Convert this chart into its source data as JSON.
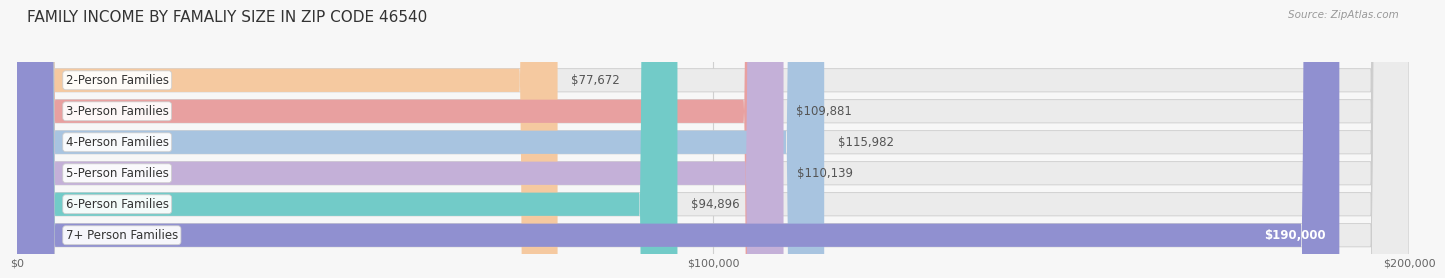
{
  "title": "FAMILY INCOME BY FAMALIY SIZE IN ZIP CODE 46540",
  "source": "Source: ZipAtlas.com",
  "categories": [
    "2-Person Families",
    "3-Person Families",
    "4-Person Families",
    "5-Person Families",
    "6-Person Families",
    "7+ Person Families"
  ],
  "values": [
    77672,
    109881,
    115982,
    110139,
    94896,
    190000
  ],
  "bar_colors": [
    "#f5c9a0",
    "#e8a0a0",
    "#a8c4e0",
    "#c4b0d8",
    "#72cbc8",
    "#9090d0"
  ],
  "label_colors": [
    "#555555",
    "#555555",
    "#555555",
    "#555555",
    "#555555",
    "#ffffff"
  ],
  "xlim": [
    0,
    200000
  ],
  "xtick_values": [
    0,
    100000,
    200000
  ],
  "xtick_labels": [
    "$0",
    "$100,000",
    "$200,000"
  ],
  "value_labels": [
    "$77,672",
    "$109,881",
    "$115,982",
    "$110,139",
    "$94,896",
    "$190,000"
  ],
  "background_color": "#f7f7f7",
  "bar_bg_color": "#ebebeb",
  "title_fontsize": 11,
  "label_fontsize": 8.5,
  "value_fontsize": 8.5,
  "bar_height": 0.75,
  "bar_gap": 0.25
}
